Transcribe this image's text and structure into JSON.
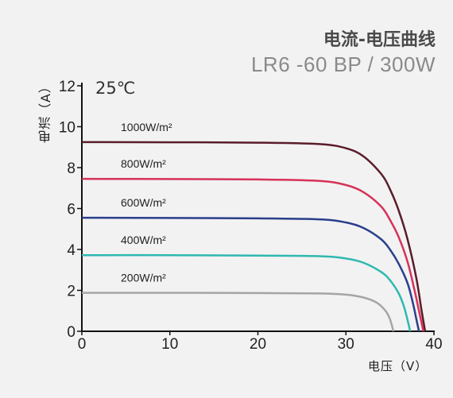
{
  "chart_data": {
    "type": "line",
    "title": "电流-电压曲线",
    "subtitle": "LR6 -60 BP / 300W",
    "annotation": "25℃",
    "xlabel": "电压（V）",
    "ylabel": "电流（A）",
    "xlim": [
      0,
      40
    ],
    "ylim": [
      0,
      12
    ],
    "xticks": [
      "0",
      "10",
      "20",
      "30",
      "40"
    ],
    "yticks": [
      "0",
      "2",
      "4",
      "6",
      "8",
      "10",
      "12"
    ],
    "grid": false,
    "series": [
      {
        "name": "1000W/m²",
        "color": "#5a1d2a",
        "x": [
          0,
          10,
          20,
          27,
          30,
          32,
          34,
          35,
          36,
          37,
          38,
          38.6,
          39.0
        ],
        "y": [
          9.25,
          9.24,
          9.22,
          9.15,
          8.95,
          8.55,
          7.7,
          6.95,
          5.9,
          4.5,
          2.6,
          1.0,
          0.0
        ]
      },
      {
        "name": "800W/m²",
        "color": "#d6325a",
        "x": [
          0,
          10,
          20,
          27,
          30,
          32,
          34,
          35,
          36,
          37,
          37.8,
          38.4,
          38.8
        ],
        "y": [
          7.45,
          7.44,
          7.42,
          7.35,
          7.15,
          6.8,
          6.1,
          5.45,
          4.6,
          3.4,
          2.0,
          0.8,
          0.0
        ]
      },
      {
        "name": "600W/m²",
        "color": "#2a3f8c",
        "x": [
          0,
          10,
          20,
          27,
          30,
          32,
          34,
          35,
          36,
          37,
          37.6,
          38.0,
          38.3
        ],
        "y": [
          5.55,
          5.54,
          5.52,
          5.47,
          5.32,
          5.05,
          4.5,
          4.0,
          3.3,
          2.35,
          1.4,
          0.6,
          0.0
        ]
      },
      {
        "name": "400W/m²",
        "color": "#2fb8b0",
        "x": [
          0,
          10,
          20,
          27,
          30,
          32,
          34,
          35,
          36,
          36.6,
          37.0,
          37.3
        ],
        "y": [
          3.72,
          3.72,
          3.7,
          3.67,
          3.56,
          3.35,
          2.9,
          2.5,
          1.85,
          1.2,
          0.55,
          0.0
        ]
      },
      {
        "name": "200W/m²",
        "color": "#a5a5a5",
        "x": [
          0,
          10,
          20,
          27,
          30,
          32,
          33.5,
          34.5,
          35.0,
          35.4
        ],
        "y": [
          1.88,
          1.88,
          1.87,
          1.85,
          1.79,
          1.65,
          1.4,
          1.0,
          0.6,
          0.0
        ]
      }
    ]
  }
}
